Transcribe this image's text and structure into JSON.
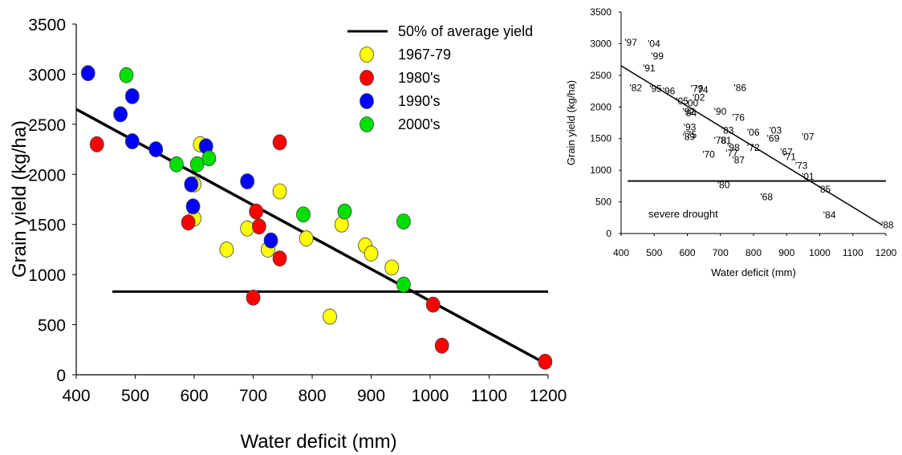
{
  "chart_data": [
    {
      "type": "scatter",
      "xlabel": "Water deficit (mm)",
      "ylabel": "Grain yield (kg/ha)",
      "xlim": [
        400,
        1200
      ],
      "ylim": [
        0,
        3500
      ],
      "xticks": [
        400,
        500,
        600,
        700,
        800,
        900,
        1000,
        1100,
        1200
      ],
      "yticks": [
        0,
        500,
        1000,
        1500,
        2000,
        2500,
        3000,
        3500
      ],
      "legend_position": "top-right",
      "reference_line": {
        "label": "50% of average yield",
        "y": 830,
        "x_range": [
          400,
          1200
        ]
      },
      "regression_line": {
        "x": [
          400,
          1190
        ],
        "y": [
          2650,
          130
        ]
      },
      "series": [
        {
          "name": "1967-79",
          "color": "#ffff00",
          "points": [
            [
              610,
              2300
            ],
            [
              600,
              1900
            ],
            [
              600,
              1560
            ],
            [
              655,
              1250
            ],
            [
              690,
              1460
            ],
            [
              725,
              1250
            ],
            [
              745,
              1830
            ],
            [
              790,
              1360
            ],
            [
              830,
              580
            ],
            [
              850,
              1500
            ],
            [
              890,
              1290
            ],
            [
              900,
              1210
            ],
            [
              935,
              1070
            ]
          ]
        },
        {
          "name": "1980's",
          "color": "#ff0000",
          "points": [
            [
              435,
              2300
            ],
            [
              590,
              1520
            ],
            [
              700,
              770
            ],
            [
              705,
              1630
            ],
            [
              710,
              1480
            ],
            [
              745,
              2320
            ],
            [
              745,
              1160
            ],
            [
              1005,
              700
            ],
            [
              1020,
              290
            ],
            [
              1195,
              130
            ]
          ]
        },
        {
          "name": "1990's",
          "color": "#0000ff",
          "points": [
            [
              420,
              3010
            ],
            [
              475,
              2600
            ],
            [
              495,
              2330
            ],
            [
              495,
              2780
            ],
            [
              535,
              2250
            ],
            [
              595,
              1900
            ],
            [
              598,
              1680
            ],
            [
              620,
              2280
            ],
            [
              690,
              1930
            ],
            [
              730,
              1340
            ]
          ]
        },
        {
          "name": "2000's",
          "color": "#00e000",
          "points": [
            [
              485,
              2990
            ],
            [
              570,
              2100
            ],
            [
              605,
              2100
            ],
            [
              625,
              2160
            ],
            [
              785,
              1600
            ],
            [
              855,
              1630
            ],
            [
              955,
              1530
            ],
            [
              955,
              900
            ]
          ]
        }
      ]
    },
    {
      "type": "scatter",
      "xlabel": "Water deficit (mm)",
      "ylabel": "Grain yield (kg/ha)",
      "xlim": [
        400,
        1200
      ],
      "ylim": [
        0,
        3500
      ],
      "xticks": [
        400,
        500,
        600,
        700,
        800,
        900,
        1000,
        1100,
        1200
      ],
      "yticks": [
        0,
        500,
        1000,
        1500,
        2000,
        2500,
        3000,
        3500
      ],
      "reference_line": {
        "y": 830,
        "x_range": [
          420,
          1200
        ]
      },
      "regression_line": {
        "x": [
          400,
          1190
        ],
        "y": [
          2650,
          130
        ]
      },
      "annotation": "severe drought",
      "points": [
        {
          "label": "'97",
          "x": 420,
          "y": 3020
        },
        {
          "label": "'04",
          "x": 490,
          "y": 3000
        },
        {
          "label": "'99",
          "x": 500,
          "y": 2800
        },
        {
          "label": "'91",
          "x": 475,
          "y": 2610
        },
        {
          "label": "'82",
          "x": 435,
          "y": 2300
        },
        {
          "label": "'95",
          "x": 495,
          "y": 2290
        },
        {
          "label": "'96",
          "x": 535,
          "y": 2250
        },
        {
          "label": "'05",
          "x": 575,
          "y": 2090
        },
        {
          "label": "'00",
          "x": 605,
          "y": 2060
        },
        {
          "label": "'79",
          "x": 620,
          "y": 2290
        },
        {
          "label": "'74",
          "x": 635,
          "y": 2270
        },
        {
          "label": "'02",
          "x": 625,
          "y": 2150
        },
        {
          "label": "'86",
          "x": 750,
          "y": 2300
        },
        {
          "label": "'92",
          "x": 595,
          "y": 1930
        },
        {
          "label": "'94",
          "x": 600,
          "y": 1900
        },
        {
          "label": "'90",
          "x": 690,
          "y": 1930
        },
        {
          "label": "'76",
          "x": 745,
          "y": 1830
        },
        {
          "label": "'93",
          "x": 598,
          "y": 1680
        },
        {
          "label": "'83",
          "x": 712,
          "y": 1630
        },
        {
          "label": "'06",
          "x": 790,
          "y": 1600
        },
        {
          "label": "'03",
          "x": 857,
          "y": 1630
        },
        {
          "label": "'07",
          "x": 955,
          "y": 1530
        },
        {
          "label": "'75",
          "x": 600,
          "y": 1560
        },
        {
          "label": "'89",
          "x": 595,
          "y": 1530
        },
        {
          "label": "'69",
          "x": 850,
          "y": 1500
        },
        {
          "label": "'78",
          "x": 690,
          "y": 1470
        },
        {
          "label": "'81",
          "x": 705,
          "y": 1470
        },
        {
          "label": "'98",
          "x": 730,
          "y": 1360
        },
        {
          "label": "'72",
          "x": 790,
          "y": 1360
        },
        {
          "label": "'67",
          "x": 890,
          "y": 1290
        },
        {
          "label": "'77",
          "x": 725,
          "y": 1270
        },
        {
          "label": "'70",
          "x": 655,
          "y": 1250
        },
        {
          "label": "'71",
          "x": 900,
          "y": 1210
        },
        {
          "label": "'87",
          "x": 745,
          "y": 1160
        },
        {
          "label": "'73",
          "x": 935,
          "y": 1070
        },
        {
          "label": "'01",
          "x": 955,
          "y": 900
        },
        {
          "label": "'80",
          "x": 700,
          "y": 770
        },
        {
          "label": "'85",
          "x": 1005,
          "y": 700
        },
        {
          "label": "'68",
          "x": 830,
          "y": 580
        },
        {
          "label": "'84",
          "x": 1020,
          "y": 290
        },
        {
          "label": "'88",
          "x": 1195,
          "y": 130
        }
      ]
    }
  ]
}
